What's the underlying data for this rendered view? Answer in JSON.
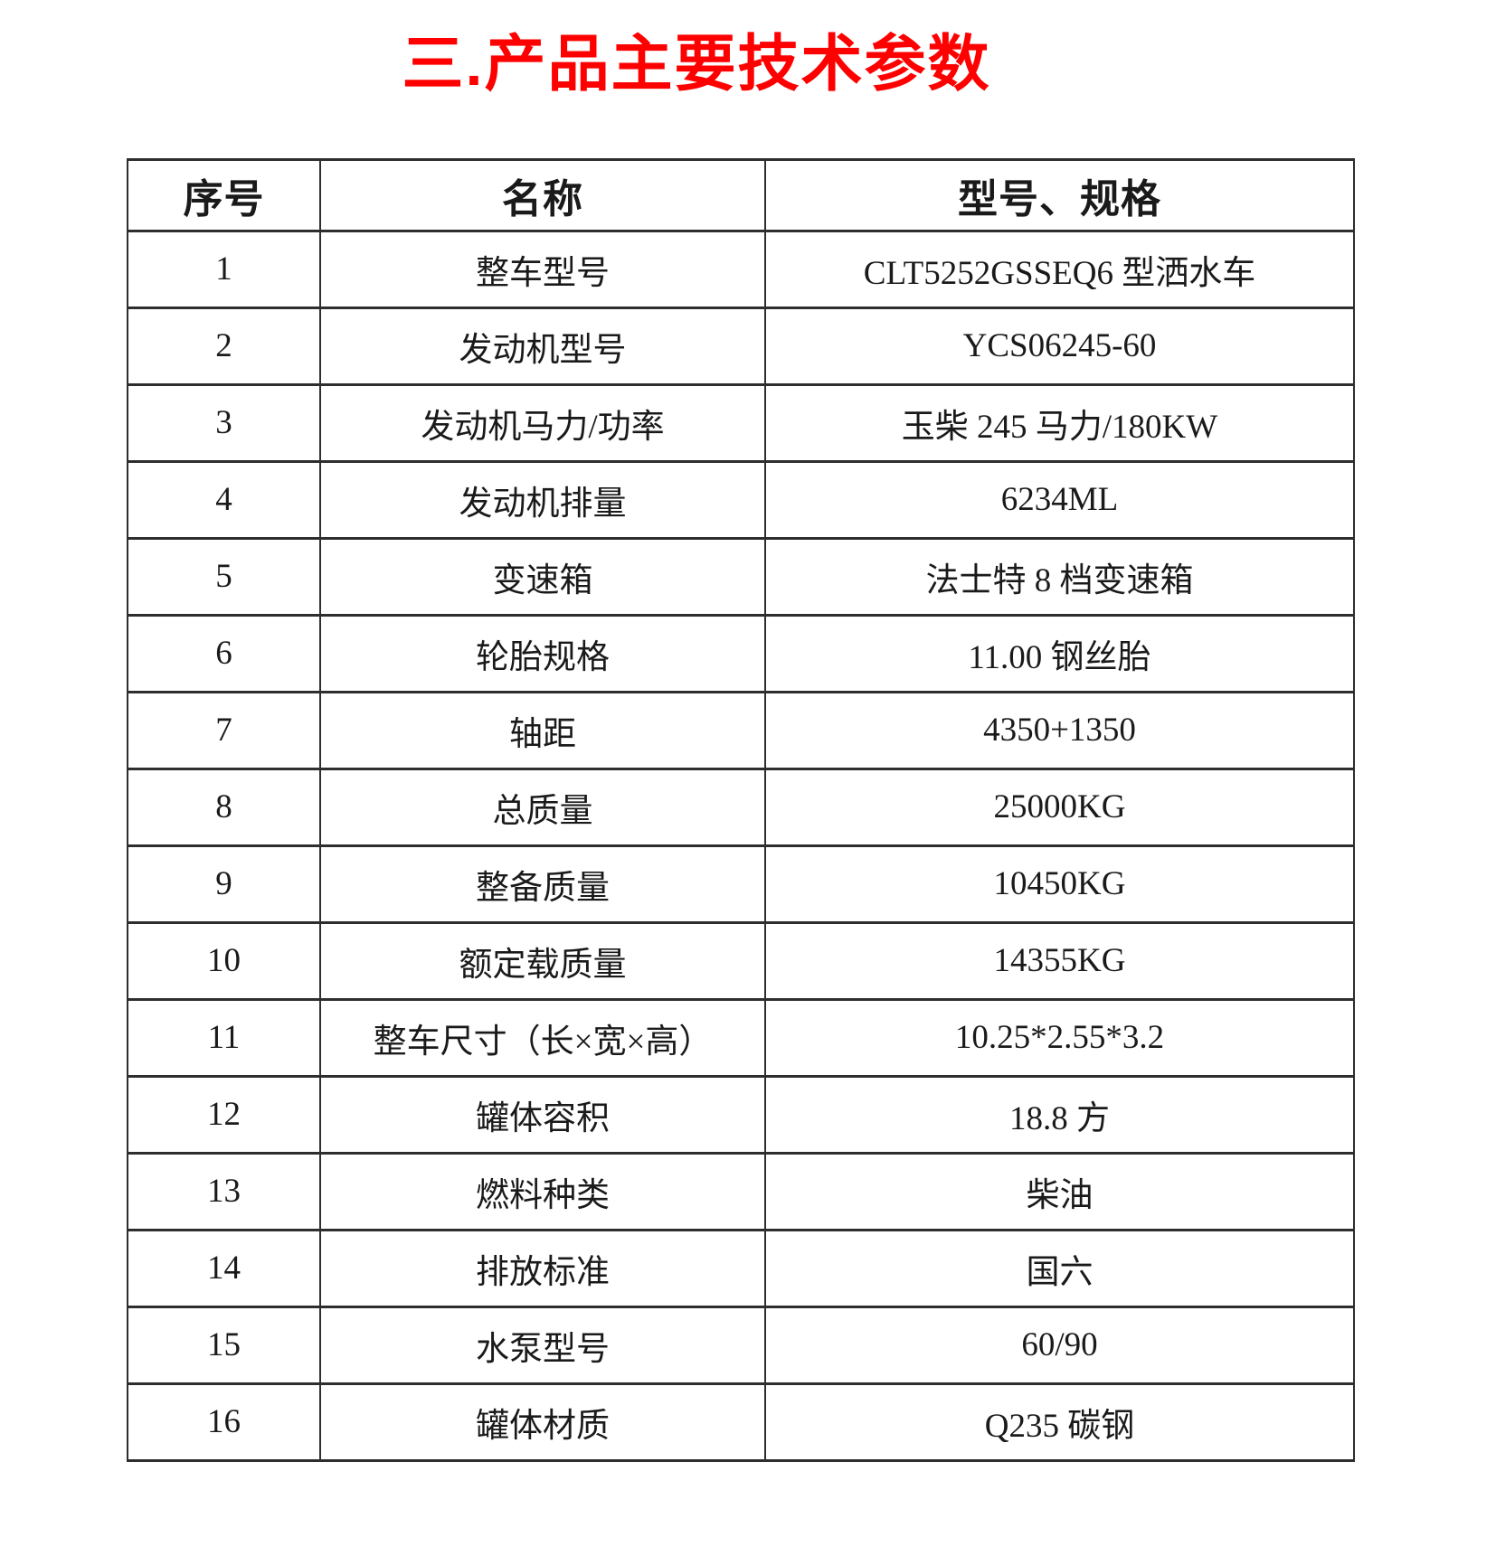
{
  "page": {
    "title": "三.产品主要技术参数",
    "title_color": "#fe0000"
  },
  "table": {
    "headers": [
      "序号",
      "名称",
      "型号、规格"
    ],
    "rows": [
      {
        "no": "1",
        "name": "整车型号",
        "spec": "CLT5252GSSEQ6 型洒水车"
      },
      {
        "no": "2",
        "name": "发动机型号",
        "spec": "YCS06245-60"
      },
      {
        "no": "3",
        "name": "发动机马力/功率",
        "spec": "玉柴 245 马力/180KW"
      },
      {
        "no": "4",
        "name": "发动机排量",
        "spec": "6234ML"
      },
      {
        "no": "5",
        "name": "变速箱",
        "spec": "法士特 8 档变速箱"
      },
      {
        "no": "6",
        "name": "轮胎规格",
        "spec": "11.00 钢丝胎"
      },
      {
        "no": "7",
        "name": "轴距",
        "spec": "4350+1350"
      },
      {
        "no": "8",
        "name": "总质量",
        "spec": "25000KG"
      },
      {
        "no": "9",
        "name": "整备质量",
        "spec": "10450KG"
      },
      {
        "no": "10",
        "name": "额定载质量",
        "spec": "14355KG"
      },
      {
        "no": "11",
        "name": "整车尺寸（长×宽×高）",
        "spec": "10.25*2.55*3.2"
      },
      {
        "no": "12",
        "name": "罐体容积",
        "spec": "18.8 方"
      },
      {
        "no": "13",
        "name": "燃料种类",
        "spec": "柴油"
      },
      {
        "no": "14",
        "name": "排放标准",
        "spec": "国六"
      },
      {
        "no": "15",
        "name": "水泵型号",
        "spec": "60/90"
      },
      {
        "no": "16",
        "name": "罐体材质",
        "spec": "Q235 碳钢"
      }
    ]
  }
}
